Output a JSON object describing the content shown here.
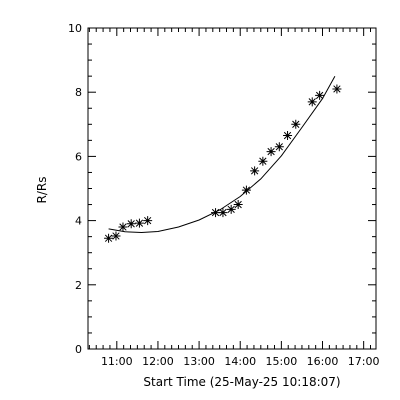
{
  "chart_data": {
    "type": "scatter",
    "xlabel": "Start Time (25-May-25 10:18:07)",
    "ylabel": "R/Rs",
    "x_unit": "clock time (hours)",
    "xlim": [
      10.3,
      17.3
    ],
    "ylim": [
      0,
      10
    ],
    "x_ticks": [
      {
        "value": 11,
        "label": "11:00"
      },
      {
        "value": 12,
        "label": "12:00"
      },
      {
        "value": 13,
        "label": "13:00"
      },
      {
        "value": 14,
        "label": "14:00"
      },
      {
        "value": 15,
        "label": "15:00"
      },
      {
        "value": 16,
        "label": "16:00"
      },
      {
        "value": 17,
        "label": "17:00"
      }
    ],
    "y_ticks": [
      {
        "value": 0,
        "label": "0"
      },
      {
        "value": 2,
        "label": "2"
      },
      {
        "value": 4,
        "label": "4"
      },
      {
        "value": 6,
        "label": "6"
      },
      {
        "value": 8,
        "label": "8"
      },
      {
        "value": 10,
        "label": "10"
      }
    ],
    "grid": false,
    "legend": "none",
    "marker": "asterisk",
    "series": [
      {
        "points": [
          {
            "x": 10.8,
            "y": 3.45
          },
          {
            "x": 10.98,
            "y": 3.52
          },
          {
            "x": 11.15,
            "y": 3.8
          },
          {
            "x": 11.35,
            "y": 3.9
          },
          {
            "x": 11.55,
            "y": 3.92
          },
          {
            "x": 11.75,
            "y": 4.0
          },
          {
            "x": 13.4,
            "y": 4.25
          },
          {
            "x": 13.58,
            "y": 4.25
          },
          {
            "x": 13.78,
            "y": 4.35
          },
          {
            "x": 13.95,
            "y": 4.5
          },
          {
            "x": 14.15,
            "y": 4.95
          },
          {
            "x": 14.35,
            "y": 5.55
          },
          {
            "x": 14.55,
            "y": 5.85
          },
          {
            "x": 14.75,
            "y": 6.15
          },
          {
            "x": 14.95,
            "y": 6.3
          },
          {
            "x": 15.15,
            "y": 6.65
          },
          {
            "x": 15.35,
            "y": 7.0
          },
          {
            "x": 15.75,
            "y": 7.7
          },
          {
            "x": 15.93,
            "y": 7.9
          },
          {
            "x": 16.35,
            "y": 8.1
          }
        ]
      }
    ],
    "fit_curve": {
      "points": [
        {
          "x": 10.8,
          "y": 3.74
        },
        {
          "x": 11.2,
          "y": 3.65
        },
        {
          "x": 11.6,
          "y": 3.63
        },
        {
          "x": 12.0,
          "y": 3.66
        },
        {
          "x": 12.5,
          "y": 3.8
        },
        {
          "x": 13.0,
          "y": 4.02
        },
        {
          "x": 13.5,
          "y": 4.33
        },
        {
          "x": 14.0,
          "y": 4.75
        },
        {
          "x": 14.5,
          "y": 5.3
        },
        {
          "x": 15.0,
          "y": 6.02
        },
        {
          "x": 15.5,
          "y": 6.9
        },
        {
          "x": 16.0,
          "y": 7.8
        },
        {
          "x": 16.3,
          "y": 8.5
        }
      ]
    },
    "colors": {
      "axes": "#000000",
      "markers": "#000000",
      "curve": "#000000",
      "background": "#ffffff"
    }
  }
}
